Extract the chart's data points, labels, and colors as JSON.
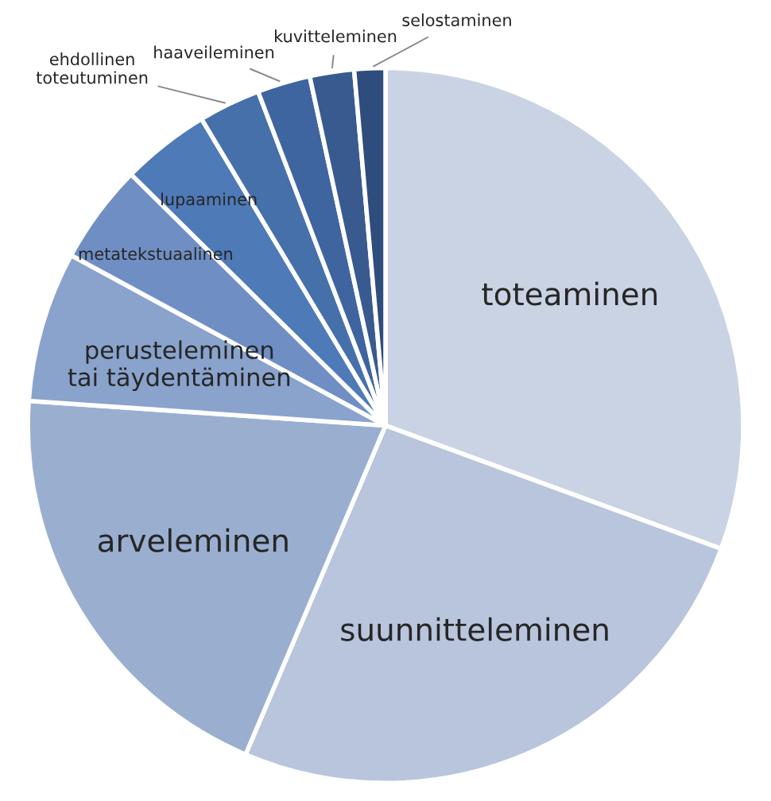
{
  "chart_data": {
    "type": "pie",
    "categories": [
      "toteaminen",
      "suunnitteleminen",
      "arveleminen",
      "perusteleminen\ntai täydentäminen",
      "metatekstuaalinen",
      "lupaaminen",
      "ehdollinen\ntoteutuminen",
      "haaveileminen",
      "kuvitteleminen",
      "selostaminen"
    ],
    "values": [
      30.6,
      25.8,
      19.7,
      6.8,
      4.5,
      4.0,
      2.8,
      2.4,
      2.0,
      1.4
    ],
    "colors": [
      "#c9d3e4",
      "#b8c5dc",
      "#9aafd0",
      "#8aa3cc",
      "#6f8fc4",
      "#4f7ab8",
      "#4670aa",
      "#3f65a0",
      "#385a8f",
      "#2f4d7c"
    ]
  }
}
